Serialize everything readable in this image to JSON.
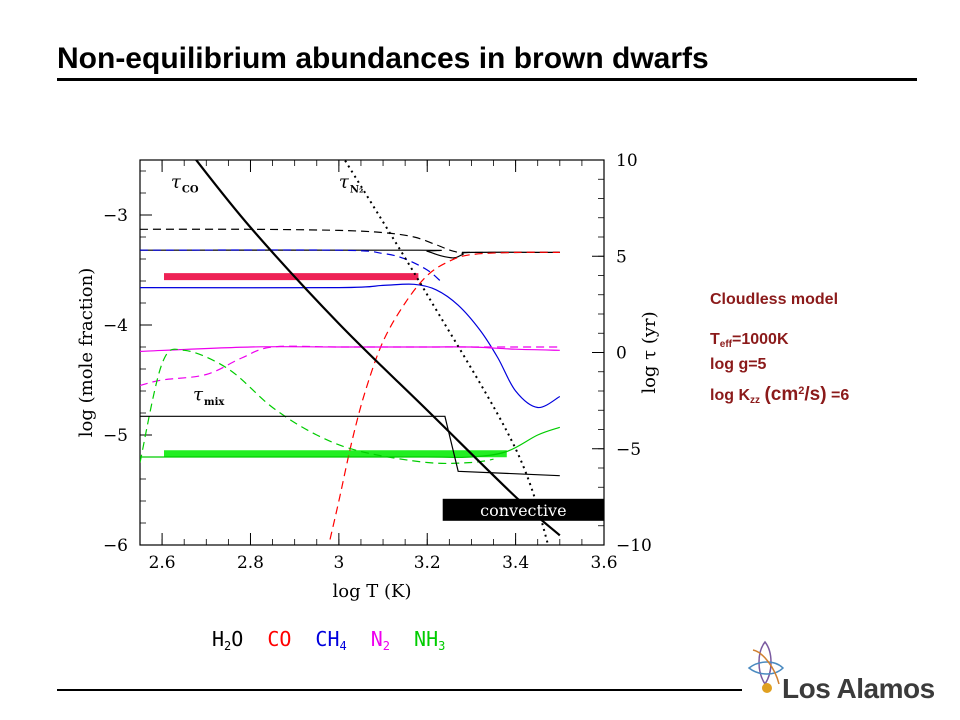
{
  "slide": {
    "title": "Non-equilibrium abundances in brown dwarfs"
  },
  "info": {
    "model": "Cloudless model",
    "teff_prefix": "T",
    "teff_sub": "eff",
    "teff_value": "=1000K",
    "logg": "log g=5",
    "kzz_prefix": "log K",
    "kzz_sub": "zz",
    "kzz_unit_open": "(cm",
    "kzz_unit_sup": "2",
    "kzz_unit_close": "/s)",
    "kzz_value": "=6"
  },
  "legend": [
    {
      "base": "H",
      "sub": "2",
      "tail": "O",
      "color": "#000000"
    },
    {
      "base": "CO",
      "sub": "",
      "tail": "",
      "color": "#ff0000"
    },
    {
      "base": "CH",
      "sub": "4",
      "tail": "",
      "color": "#0000dd"
    },
    {
      "base": "N",
      "sub": "2",
      "tail": "",
      "color": "#ee00ee"
    },
    {
      "base": "NH",
      "sub": "3",
      "tail": "",
      "color": "#00cc00"
    }
  ],
  "logo": {
    "text": "Los Alamos"
  },
  "chart_data": {
    "type": "line",
    "xlabel": "log T (K)",
    "ylabel": "log (mole fraction)",
    "ylabel2": "log τ (yr)",
    "xlim": [
      2.55,
      3.6
    ],
    "ylim": [
      -6,
      -2.5
    ],
    "y2lim": [
      -10,
      10
    ],
    "xticks": [
      2.6,
      2.8,
      3.0,
      3.2,
      3.4,
      3.6
    ],
    "yticks": [
      -6,
      -5,
      -4,
      -3
    ],
    "y2ticks": [
      -10,
      -5,
      0,
      5,
      10
    ],
    "annotations": [
      {
        "label": "τ",
        "sub": "CO",
        "x": 2.62,
        "y": -2.75
      },
      {
        "label": "τ",
        "sub": "N₂",
        "x": 3.0,
        "y": -2.75
      },
      {
        "label": "τ",
        "sub": "mix",
        "x": 2.67,
        "y": -4.68
      },
      {
        "label": "convective",
        "x": 3.25,
        "y": -5.68
      }
    ],
    "convective_box": {
      "x": [
        3.235,
        3.6
      ],
      "y": [
        -5.78,
        -5.58
      ]
    },
    "series": [
      {
        "name": "H₂O",
        "axis": "left",
        "color": "#000000",
        "dash": "solid",
        "width": 1.2,
        "x": [
          2.55,
          3.18,
          3.2,
          3.23,
          3.26,
          3.28,
          3.3,
          3.5
        ],
        "y": [
          -3.32,
          -3.32,
          -3.33,
          -3.37,
          -3.39,
          -3.36,
          -3.34,
          -3.34
        ]
      },
      {
        "name": "H₂O",
        "axis": "left",
        "color": "#000000",
        "dash": "dashed",
        "width": 1.2,
        "x": [
          2.55,
          2.8,
          3.0,
          3.1,
          3.17,
          3.22,
          3.26,
          3.3,
          3.5
        ],
        "y": [
          -3.13,
          -3.13,
          -3.14,
          -3.16,
          -3.2,
          -3.27,
          -3.33,
          -3.34,
          -3.34
        ]
      },
      {
        "name": "CO",
        "axis": "left",
        "color": "#ff0000",
        "dash": "dashed",
        "width": 1.2,
        "x": [
          2.98,
          3.0,
          3.03,
          3.06,
          3.1,
          3.15,
          3.2,
          3.25,
          3.3,
          3.4,
          3.5
        ],
        "y": [
          -5.95,
          -5.6,
          -5.05,
          -4.6,
          -4.15,
          -3.8,
          -3.55,
          -3.42,
          -3.36,
          -3.34,
          -3.34
        ]
      },
      {
        "name": "CH₄",
        "axis": "left",
        "color": "#0000dd",
        "dash": "solid",
        "width": 1.2,
        "x": [
          2.55,
          3.0,
          3.1,
          3.17,
          3.22,
          3.27,
          3.32,
          3.36,
          3.4,
          3.45,
          3.5
        ],
        "y": [
          -3.66,
          -3.66,
          -3.64,
          -3.63,
          -3.68,
          -3.82,
          -4.05,
          -4.3,
          -4.6,
          -4.75,
          -4.65
        ]
      },
      {
        "name": "CH₄",
        "axis": "left",
        "color": "#0000dd",
        "dash": "dashed",
        "width": 1.2,
        "x": [
          2.55,
          3.0,
          3.1,
          3.15,
          3.2,
          3.23
        ],
        "y": [
          -3.32,
          -3.32,
          -3.35,
          -3.4,
          -3.5,
          -3.6
        ]
      },
      {
        "name": "N₂",
        "axis": "left",
        "color": "#ee00ee",
        "dash": "solid",
        "width": 1.2,
        "x": [
          2.55,
          2.8,
          3.0,
          3.2,
          3.3,
          3.4,
          3.5
        ],
        "y": [
          -4.24,
          -4.2,
          -4.2,
          -4.2,
          -4.2,
          -4.22,
          -4.23
        ]
      },
      {
        "name": "N₂",
        "axis": "left",
        "color": "#ee00ee",
        "dash": "dashed",
        "width": 1.2,
        "x": [
          2.55,
          2.6,
          2.7,
          2.78,
          2.85,
          3.0,
          3.2,
          3.5
        ],
        "y": [
          -4.55,
          -4.5,
          -4.45,
          -4.3,
          -4.2,
          -4.2,
          -4.2,
          -4.2
        ]
      },
      {
        "name": "NH₃",
        "axis": "left",
        "color": "#00cc00",
        "dash": "solid",
        "width": 1.2,
        "x": [
          2.55,
          2.7,
          3.0,
          3.2,
          3.3,
          3.38,
          3.45,
          3.5
        ],
        "y": [
          -5.2,
          -5.2,
          -5.2,
          -5.2,
          -5.2,
          -5.15,
          -5.0,
          -4.93
        ]
      },
      {
        "name": "NH₃",
        "axis": "left",
        "color": "#00cc00",
        "dash": "dashed",
        "width": 1.2,
        "x": [
          2.55,
          2.6,
          2.65,
          2.75,
          2.85,
          2.95,
          3.05,
          3.2,
          3.3,
          3.35
        ],
        "y": [
          -5.25,
          -4.35,
          -4.23,
          -4.4,
          -4.75,
          -5.0,
          -5.15,
          -5.25,
          -5.25,
          -5.22
        ]
      },
      {
        "name": "τ_CO",
        "axis": "right",
        "color": "#000000",
        "dash": "solid",
        "width": 2.2,
        "x": [
          2.66,
          2.8,
          3.0,
          3.2,
          3.4,
          3.5
        ],
        "y": [
          10.5,
          6.5,
          1.5,
          -3.0,
          -7.5,
          -9.5
        ]
      },
      {
        "name": "τ_N₂",
        "axis": "right",
        "color": "#000000",
        "dash": "dotted",
        "width": 2.0,
        "x": [
          3.0,
          3.2,
          3.4,
          3.48
        ],
        "y": [
          10.5,
          3.0,
          -5.0,
          -10.5
        ]
      },
      {
        "name": "τ_mix",
        "axis": "left",
        "color": "#000000",
        "dash": "solid",
        "width": 1.2,
        "x": [
          2.55,
          3.24,
          3.27,
          3.5
        ],
        "y": [
          -4.83,
          -4.83,
          -5.33,
          -5.37
        ]
      }
    ],
    "highlight_bars": [
      {
        "color": "#ee2255",
        "x": [
          2.55,
          3.18
        ],
        "y": -3.56
      },
      {
        "color": "#22ee22",
        "x": [
          2.55,
          3.38
        ],
        "y": -5.17
      }
    ]
  }
}
